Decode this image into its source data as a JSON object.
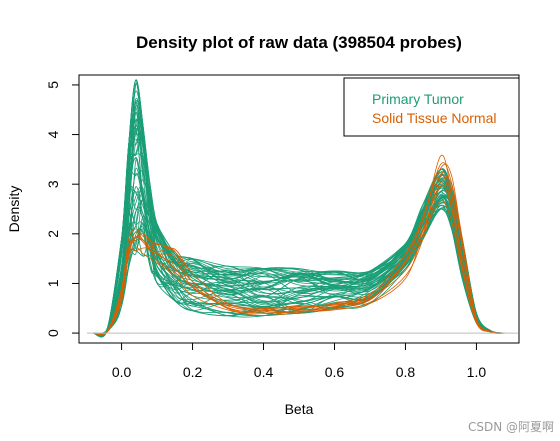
{
  "chart_data": {
    "type": "line",
    "title": "Density plot of raw data (398504 probes)",
    "xlabel": "Beta",
    "ylabel": "Density",
    "xlim": [
      -0.12,
      1.12
    ],
    "ylim": [
      -0.2,
      5.2
    ],
    "x_ticks": [
      0.0,
      0.2,
      0.4,
      0.6,
      0.8,
      1.0
    ],
    "x_tick_labels": [
      "0.0",
      "0.2",
      "0.4",
      "0.6",
      "0.8",
      "1.0"
    ],
    "y_ticks": [
      0,
      1,
      2,
      3,
      4,
      5
    ],
    "y_tick_labels": [
      "0",
      "1",
      "2",
      "3",
      "4",
      "5"
    ],
    "grid": false,
    "baseline_y": 0,
    "legend": {
      "position": "top-right",
      "entries": [
        {
          "label": "Primary Tumor",
          "color": "#1b9e77"
        },
        {
          "label": "Solid Tissue Normal",
          "color": "#d95f02"
        }
      ]
    },
    "series": [
      {
        "name": "Primary Tumor",
        "color": "#1b9e77",
        "curve_count": 60,
        "x": [
          -0.08,
          -0.04,
          0.0,
          0.02,
          0.04,
          0.06,
          0.08,
          0.1,
          0.15,
          0.2,
          0.3,
          0.4,
          0.5,
          0.6,
          0.7,
          0.8,
          0.85,
          0.9,
          0.93,
          0.96,
          1.0,
          1.04,
          1.08
        ],
        "y_range_low": [
          0.0,
          0.03,
          0.55,
          1.3,
          1.6,
          1.55,
          1.35,
          1.0,
          0.65,
          0.45,
          0.35,
          0.35,
          0.4,
          0.5,
          0.6,
          1.3,
          1.9,
          2.5,
          2.1,
          1.1,
          0.2,
          0.02,
          0.0
        ],
        "y_range_high": [
          0.0,
          0.1,
          1.9,
          3.8,
          5.1,
          4.2,
          3.0,
          2.2,
          1.6,
          1.5,
          1.35,
          1.3,
          1.3,
          1.25,
          1.25,
          1.8,
          2.6,
          3.3,
          2.9,
          1.9,
          0.4,
          0.05,
          0.0
        ]
      },
      {
        "name": "Solid Tissue Normal",
        "color": "#d95f02",
        "curve_count": 8,
        "x": [
          -0.08,
          -0.04,
          0.0,
          0.02,
          0.04,
          0.06,
          0.08,
          0.1,
          0.15,
          0.2,
          0.3,
          0.4,
          0.5,
          0.6,
          0.7,
          0.8,
          0.85,
          0.9,
          0.93,
          0.96,
          1.0,
          1.04,
          1.08
        ],
        "y_range_low": [
          0.0,
          0.02,
          0.6,
          1.4,
          1.6,
          1.6,
          1.5,
          1.4,
          1.15,
          0.7,
          0.4,
          0.35,
          0.4,
          0.45,
          0.55,
          1.1,
          1.8,
          2.6,
          2.2,
          1.2,
          0.2,
          0.02,
          0.0
        ],
        "y_range_high": [
          0.0,
          0.05,
          0.9,
          1.9,
          2.1,
          2.0,
          1.9,
          1.8,
          1.7,
          1.2,
          0.6,
          0.5,
          0.55,
          0.6,
          0.8,
          1.6,
          2.4,
          3.6,
          3.2,
          2.0,
          0.3,
          0.04,
          0.0
        ]
      }
    ]
  },
  "watermark": "CSDN @阿夏啊"
}
